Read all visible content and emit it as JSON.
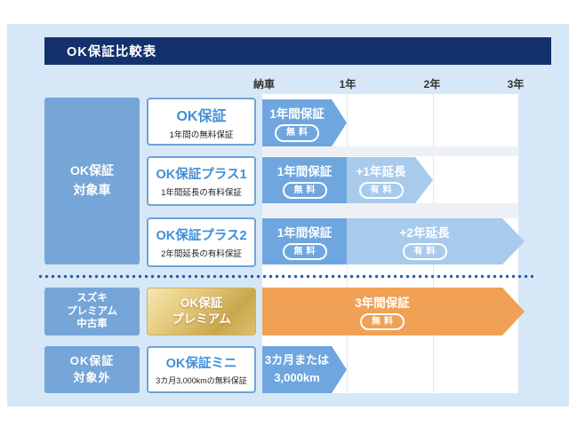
{
  "header": {
    "title": "OK保証比較表"
  },
  "timeline": {
    "t0": "納車",
    "t1": "1年",
    "t2": "2年",
    "t3": "3年"
  },
  "categories": {
    "target": {
      "line1": "OK保証",
      "line2": "対象車"
    },
    "premium": {
      "line1": "スズキ",
      "line2": "プレミアム",
      "line3": "中古車"
    },
    "excluded": {
      "line1": "OK保証",
      "line2": "対象外"
    }
  },
  "plans": {
    "ok": {
      "title": "OK保証",
      "subtitle": "1年間の無料保証"
    },
    "plus1": {
      "title": "OK保証プラス1",
      "subtitle": "1年間延長の有料保証"
    },
    "plus2": {
      "title": "OK保証プラス2",
      "subtitle": "2年間延長の有料保証"
    },
    "premium": {
      "line1": "OK保証",
      "line2": "プレミアム"
    },
    "mini": {
      "title": "OK保証ミニ",
      "subtitle": "3カ月3,000kmの無料保証"
    }
  },
  "bars": {
    "row1": {
      "label": "1年間保証",
      "badge": "無料"
    },
    "row2a": {
      "label": "1年間保証",
      "badge": "無料"
    },
    "row2b": {
      "label": "+1年延長",
      "badge": "有料"
    },
    "row3a": {
      "label": "1年間保証",
      "badge": "無料"
    },
    "row3b": {
      "label": "+2年延長",
      "badge": "有料"
    },
    "premium": {
      "label": "3年間保証",
      "badge": "無料"
    },
    "mini": {
      "line1": "3カ月または",
      "line2": "3,000km"
    }
  },
  "colors": {
    "navy": "#14316E",
    "panel_blue": "#D6E8F7",
    "category_blue": "#76A5D8",
    "bar_blue": "#6FA6DF",
    "bar_light_blue": "#A8CBEC",
    "bar_orange": "#F0A155",
    "gold_light": "#F4E6B4",
    "gold_dark": "#C9A74D",
    "plan_border": "#6FA3D6",
    "plan_title_blue": "#3F8FD6",
    "dotted_line": "#2B5CA7"
  }
}
